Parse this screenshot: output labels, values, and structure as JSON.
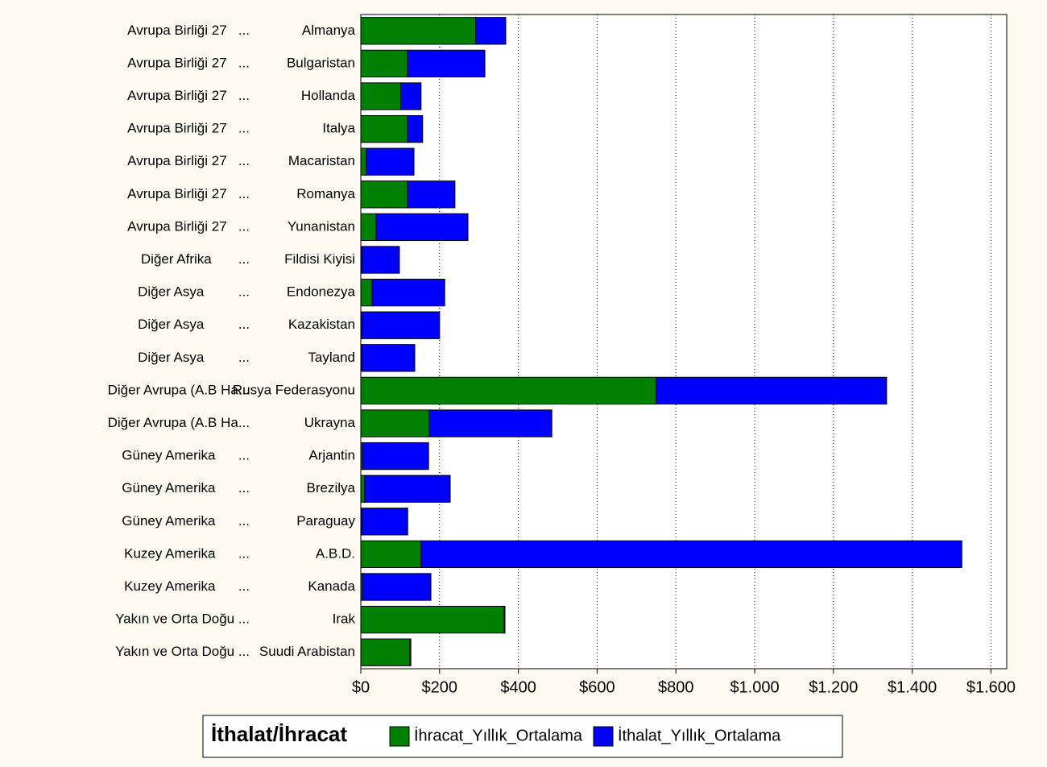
{
  "chart_data": {
    "type": "stacked_bar_horizontal",
    "regions": [
      "Avrupa Birliği 27   ...",
      "Avrupa Birliği 27   ...",
      "Avrupa Birliği 27   ...",
      "Avrupa Birliği 27   ...",
      "Avrupa Birliği 27   ...",
      "Avrupa Birliği 27   ...",
      "Avrupa Birliği 27   ...",
      "Diğer Afrika       ...",
      "Diğer Asya         ...",
      "Diğer Asya         ...",
      "Diğer Asya         ...",
      "Diğer Avrupa (A.B Ha...",
      "Diğer Avrupa (A.B Ha...",
      "Güney Amerika      ...",
      "Güney Amerika      ...",
      "Güney Amerika      ...",
      "Kuzey Amerika      ...",
      "Kuzey Amerika      ...",
      "Yakın ve Orta Doğu ...",
      "Yakın ve Orta Doğu ..."
    ],
    "categories": [
      "Almanya",
      "Bulgaristan",
      "Hollanda",
      "Italya",
      "Macaristan",
      "Romanya",
      "Yunanistan",
      "Fildisi Kiyisi",
      "Endonezya",
      "Kazakistan",
      "Tayland",
      "Rusya Federasyonu",
      "Ukrayna",
      "Arjantin",
      "Brezilya",
      "Paraguay",
      "A.B.D.",
      "Kanada",
      "Irak",
      "Suudi Arabistan"
    ],
    "series": [
      {
        "name": "İhracat_Yıllık_Ortalama",
        "color": "#008000",
        "values": [
          292,
          119,
          102,
          119,
          14,
          119,
          39,
          2,
          29,
          2,
          2,
          750,
          174,
          4,
          10,
          2,
          153,
          4,
          364,
          125
        ]
      },
      {
        "name": "İthalat_Yıllık_Ortalama",
        "color": "#0000ff",
        "values": [
          76,
          196,
          51,
          38,
          121,
          120,
          233,
          96,
          184,
          198,
          135,
          585,
          311,
          168,
          217,
          117,
          1373,
          174,
          2,
          2
        ]
      }
    ],
    "legend_title": "İthalat/İhracat",
    "xlim": [
      0,
      1640
    ],
    "xticks": [
      {
        "value": 0,
        "label": "$0"
      },
      {
        "value": 200,
        "label": "$200"
      },
      {
        "value": 400,
        "label": "$400"
      },
      {
        "value": 600,
        "label": "$600"
      },
      {
        "value": 800,
        "label": "$800"
      },
      {
        "value": 1000,
        "label": "$1.000"
      },
      {
        "value": 1200,
        "label": "$1.200"
      },
      {
        "value": 1400,
        "label": "$1.400"
      },
      {
        "value": 1600,
        "label": "$1.600"
      }
    ],
    "grid": true
  }
}
